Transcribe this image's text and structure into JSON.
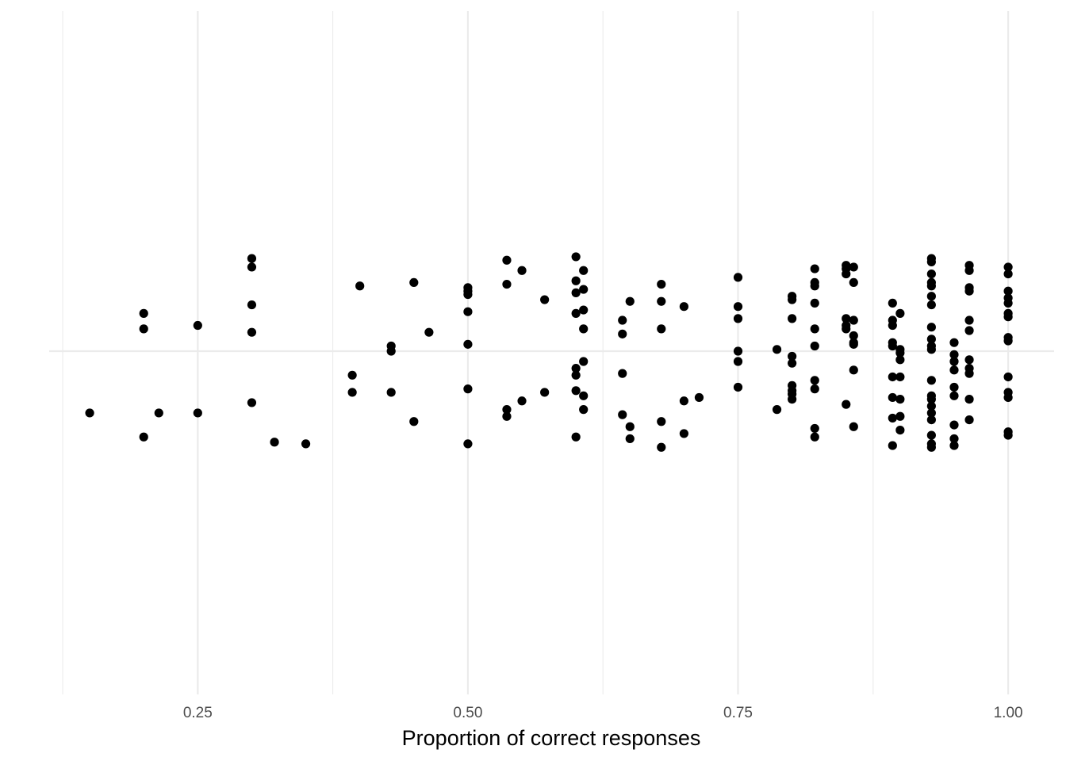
{
  "chart_data": {
    "type": "scatter",
    "xlabel": "Proportion of correct responses",
    "ylabel": "",
    "xlim": [
      0.1125,
      1.0425
    ],
    "ylim": [
      -1,
      1
    ],
    "x_ticks": [
      "0.25",
      "0.50",
      "0.75",
      "1.00"
    ],
    "x_tick_values": [
      0.25,
      0.5,
      0.75,
      1.0
    ],
    "x_minor_ticks": [
      0.125,
      0.375,
      0.625,
      0.875
    ],
    "y_reference_line": 0,
    "grid": true,
    "point_color": "#000000",
    "grid_color": "#ebebeb",
    "points": [
      {
        "x": 0.15,
        "y": -0.18
      },
      {
        "x": 0.2,
        "y": 0.11
      },
      {
        "x": 0.2,
        "y": 0.065
      },
      {
        "x": 0.2,
        "y": -0.25
      },
      {
        "x": 0.214,
        "y": -0.18
      },
      {
        "x": 0.25,
        "y": 0.075
      },
      {
        "x": 0.25,
        "y": -0.18
      },
      {
        "x": 0.3,
        "y": 0.27
      },
      {
        "x": 0.3,
        "y": 0.245
      },
      {
        "x": 0.3,
        "y": 0.135
      },
      {
        "x": 0.3,
        "y": 0.055
      },
      {
        "x": 0.3,
        "y": -0.15
      },
      {
        "x": 0.321,
        "y": -0.265
      },
      {
        "x": 0.35,
        "y": -0.27
      },
      {
        "x": 0.393,
        "y": -0.07
      },
      {
        "x": 0.393,
        "y": -0.12
      },
      {
        "x": 0.4,
        "y": 0.19
      },
      {
        "x": 0.429,
        "y": 0.015
      },
      {
        "x": 0.429,
        "y": 0.0
      },
      {
        "x": 0.429,
        "y": -0.12
      },
      {
        "x": 0.45,
        "y": 0.2
      },
      {
        "x": 0.45,
        "y": -0.205
      },
      {
        "x": 0.464,
        "y": 0.055
      },
      {
        "x": 0.5,
        "y": 0.185
      },
      {
        "x": 0.5,
        "y": 0.175
      },
      {
        "x": 0.5,
        "y": 0.165
      },
      {
        "x": 0.5,
        "y": 0.115
      },
      {
        "x": 0.5,
        "y": 0.02
      },
      {
        "x": 0.5,
        "y": -0.11
      },
      {
        "x": 0.5,
        "y": -0.27
      },
      {
        "x": 0.536,
        "y": 0.265
      },
      {
        "x": 0.536,
        "y": 0.195
      },
      {
        "x": 0.536,
        "y": -0.17
      },
      {
        "x": 0.536,
        "y": -0.19
      },
      {
        "x": 0.55,
        "y": 0.235
      },
      {
        "x": 0.55,
        "y": -0.145
      },
      {
        "x": 0.571,
        "y": 0.15
      },
      {
        "x": 0.571,
        "y": -0.12
      },
      {
        "x": 0.6,
        "y": 0.275
      },
      {
        "x": 0.6,
        "y": 0.205
      },
      {
        "x": 0.6,
        "y": 0.17
      },
      {
        "x": 0.6,
        "y": 0.11
      },
      {
        "x": 0.6,
        "y": -0.05
      },
      {
        "x": 0.6,
        "y": -0.07
      },
      {
        "x": 0.6,
        "y": -0.115
      },
      {
        "x": 0.6,
        "y": -0.25
      },
      {
        "x": 0.607,
        "y": 0.235
      },
      {
        "x": 0.607,
        "y": 0.18
      },
      {
        "x": 0.607,
        "y": 0.12
      },
      {
        "x": 0.607,
        "y": 0.065
      },
      {
        "x": 0.607,
        "y": -0.03
      },
      {
        "x": 0.607,
        "y": -0.13
      },
      {
        "x": 0.607,
        "y": -0.17
      },
      {
        "x": 0.643,
        "y": 0.09
      },
      {
        "x": 0.643,
        "y": 0.05
      },
      {
        "x": 0.643,
        "y": -0.065
      },
      {
        "x": 0.643,
        "y": -0.185
      },
      {
        "x": 0.65,
        "y": 0.145
      },
      {
        "x": 0.65,
        "y": -0.22
      },
      {
        "x": 0.65,
        "y": -0.255
      },
      {
        "x": 0.679,
        "y": 0.195
      },
      {
        "x": 0.679,
        "y": 0.145
      },
      {
        "x": 0.679,
        "y": 0.065
      },
      {
        "x": 0.679,
        "y": -0.205
      },
      {
        "x": 0.679,
        "y": -0.28
      },
      {
        "x": 0.7,
        "y": 0.13
      },
      {
        "x": 0.7,
        "y": -0.145
      },
      {
        "x": 0.7,
        "y": -0.24
      },
      {
        "x": 0.714,
        "y": -0.135
      },
      {
        "x": 0.75,
        "y": 0.215
      },
      {
        "x": 0.75,
        "y": 0.13
      },
      {
        "x": 0.75,
        "y": 0.095
      },
      {
        "x": 0.75,
        "y": 0.0
      },
      {
        "x": 0.75,
        "y": -0.03
      },
      {
        "x": 0.75,
        "y": -0.105
      },
      {
        "x": 0.786,
        "y": 0.005
      },
      {
        "x": 0.786,
        "y": -0.17
      },
      {
        "x": 0.8,
        "y": 0.16
      },
      {
        "x": 0.8,
        "y": 0.15
      },
      {
        "x": 0.8,
        "y": 0.095
      },
      {
        "x": 0.8,
        "y": -0.015
      },
      {
        "x": 0.8,
        "y": -0.035
      },
      {
        "x": 0.8,
        "y": -0.1
      },
      {
        "x": 0.8,
        "y": -0.115
      },
      {
        "x": 0.8,
        "y": -0.125
      },
      {
        "x": 0.8,
        "y": -0.14
      },
      {
        "x": 0.821,
        "y": 0.24
      },
      {
        "x": 0.821,
        "y": 0.2
      },
      {
        "x": 0.821,
        "y": 0.19
      },
      {
        "x": 0.821,
        "y": 0.14
      },
      {
        "x": 0.821,
        "y": 0.065
      },
      {
        "x": 0.821,
        "y": 0.015
      },
      {
        "x": 0.821,
        "y": -0.085
      },
      {
        "x": 0.821,
        "y": -0.11
      },
      {
        "x": 0.821,
        "y": -0.225
      },
      {
        "x": 0.821,
        "y": -0.25
      },
      {
        "x": 0.85,
        "y": 0.25
      },
      {
        "x": 0.85,
        "y": 0.24
      },
      {
        "x": 0.85,
        "y": 0.225
      },
      {
        "x": 0.85,
        "y": 0.095
      },
      {
        "x": 0.85,
        "y": 0.075
      },
      {
        "x": 0.85,
        "y": 0.065
      },
      {
        "x": 0.85,
        "y": -0.155
      },
      {
        "x": 0.857,
        "y": 0.245
      },
      {
        "x": 0.857,
        "y": 0.2
      },
      {
        "x": 0.857,
        "y": 0.09
      },
      {
        "x": 0.857,
        "y": 0.045
      },
      {
        "x": 0.857,
        "y": 0.025
      },
      {
        "x": 0.857,
        "y": 0.02
      },
      {
        "x": 0.857,
        "y": -0.055
      },
      {
        "x": 0.857,
        "y": -0.22
      },
      {
        "x": 0.893,
        "y": 0.14
      },
      {
        "x": 0.893,
        "y": 0.09
      },
      {
        "x": 0.893,
        "y": 0.075
      },
      {
        "x": 0.893,
        "y": 0.025
      },
      {
        "x": 0.893,
        "y": 0.015
      },
      {
        "x": 0.893,
        "y": -0.075
      },
      {
        "x": 0.893,
        "y": -0.135
      },
      {
        "x": 0.893,
        "y": -0.195
      },
      {
        "x": 0.893,
        "y": -0.275
      },
      {
        "x": 0.9,
        "y": 0.11
      },
      {
        "x": 0.9,
        "y": 0.005
      },
      {
        "x": 0.9,
        "y": -0.005
      },
      {
        "x": 0.9,
        "y": -0.025
      },
      {
        "x": 0.9,
        "y": -0.075
      },
      {
        "x": 0.9,
        "y": -0.14
      },
      {
        "x": 0.9,
        "y": -0.19
      },
      {
        "x": 0.9,
        "y": -0.23
      },
      {
        "x": 0.929,
        "y": 0.27
      },
      {
        "x": 0.929,
        "y": 0.26
      },
      {
        "x": 0.929,
        "y": 0.225
      },
      {
        "x": 0.929,
        "y": 0.2
      },
      {
        "x": 0.929,
        "y": 0.19
      },
      {
        "x": 0.929,
        "y": 0.16
      },
      {
        "x": 0.929,
        "y": 0.135
      },
      {
        "x": 0.929,
        "y": 0.07
      },
      {
        "x": 0.929,
        "y": 0.035
      },
      {
        "x": 0.929,
        "y": 0.015
      },
      {
        "x": 0.929,
        "y": 0.005
      },
      {
        "x": 0.929,
        "y": -0.085
      },
      {
        "x": 0.929,
        "y": -0.13
      },
      {
        "x": 0.929,
        "y": -0.14
      },
      {
        "x": 0.929,
        "y": -0.16
      },
      {
        "x": 0.929,
        "y": -0.18
      },
      {
        "x": 0.929,
        "y": -0.2
      },
      {
        "x": 0.929,
        "y": -0.245
      },
      {
        "x": 0.929,
        "y": -0.27
      },
      {
        "x": 0.929,
        "y": -0.28
      },
      {
        "x": 0.95,
        "y": 0.025
      },
      {
        "x": 0.95,
        "y": -0.01
      },
      {
        "x": 0.95,
        "y": -0.03
      },
      {
        "x": 0.95,
        "y": -0.055
      },
      {
        "x": 0.95,
        "y": -0.105
      },
      {
        "x": 0.95,
        "y": -0.13
      },
      {
        "x": 0.95,
        "y": -0.215
      },
      {
        "x": 0.95,
        "y": -0.255
      },
      {
        "x": 0.95,
        "y": -0.275
      },
      {
        "x": 0.964,
        "y": 0.25
      },
      {
        "x": 0.964,
        "y": 0.235
      },
      {
        "x": 0.964,
        "y": 0.185
      },
      {
        "x": 0.964,
        "y": 0.175
      },
      {
        "x": 0.964,
        "y": 0.09
      },
      {
        "x": 0.964,
        "y": 0.06
      },
      {
        "x": 0.964,
        "y": -0.025
      },
      {
        "x": 0.964,
        "y": -0.05
      },
      {
        "x": 0.964,
        "y": -0.065
      },
      {
        "x": 0.964,
        "y": -0.14
      },
      {
        "x": 0.964,
        "y": -0.2
      },
      {
        "x": 1.0,
        "y": 0.245
      },
      {
        "x": 1.0,
        "y": 0.225
      },
      {
        "x": 1.0,
        "y": 0.175
      },
      {
        "x": 1.0,
        "y": 0.155
      },
      {
        "x": 1.0,
        "y": 0.14
      },
      {
        "x": 1.0,
        "y": 0.11
      },
      {
        "x": 1.0,
        "y": 0.1
      },
      {
        "x": 1.0,
        "y": 0.04
      },
      {
        "x": 1.0,
        "y": 0.03
      },
      {
        "x": 1.0,
        "y": -0.075
      },
      {
        "x": 1.0,
        "y": -0.12
      },
      {
        "x": 1.0,
        "y": -0.135
      },
      {
        "x": 1.0,
        "y": -0.235
      },
      {
        "x": 1.0,
        "y": -0.245
      }
    ]
  }
}
